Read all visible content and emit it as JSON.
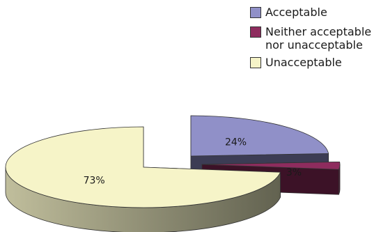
{
  "chart_data": {
    "type": "pie",
    "title": "",
    "style": "3d-exploded",
    "legend_position": "top-right",
    "slices": [
      {
        "name": "Acceptable",
        "value": 24,
        "label": "24%",
        "color": "#9090c8"
      },
      {
        "name": "Neither acceptable\nnor unacceptable",
        "value": 3,
        "label": "3%",
        "color": "#8e2c5e"
      },
      {
        "name": "Unacceptable",
        "value": 73,
        "label": "73%",
        "color": "#f6f4c8"
      }
    ]
  }
}
